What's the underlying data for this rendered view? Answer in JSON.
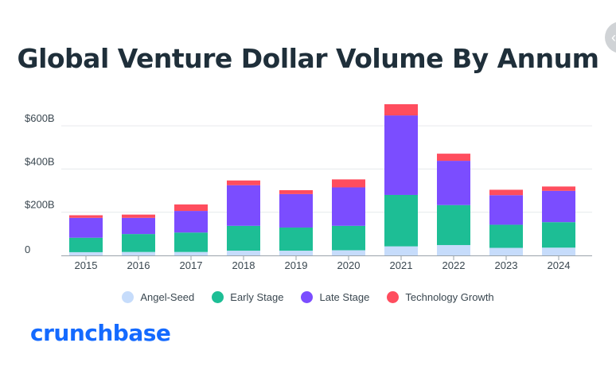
{
  "chart_data": {
    "type": "bar",
    "stacked": true,
    "title": "Global Venture Dollar Volume By Annum",
    "categories": [
      "2015",
      "2016",
      "2017",
      "2018",
      "2019",
      "2020",
      "2021",
      "2022",
      "2023",
      "2024"
    ],
    "series": [
      {
        "name": "Angel-Seed",
        "color": "#c6dcfb",
        "values": [
          15,
          16,
          16,
          22,
          22,
          24,
          42,
          48,
          35,
          36
        ]
      },
      {
        "name": "Early Stage",
        "color": "#1dbe95",
        "values": [
          67,
          83,
          90,
          115,
          107,
          113,
          238,
          185,
          107,
          118
        ]
      },
      {
        "name": "Late Stage",
        "color": "#7b4dff",
        "values": [
          92,
          75,
          100,
          188,
          155,
          178,
          368,
          205,
          137,
          145
        ]
      },
      {
        "name": "Technology Growth",
        "color": "#ff4d5e",
        "values": [
          12,
          15,
          30,
          22,
          18,
          37,
          52,
          33,
          25,
          20
        ]
      }
    ],
    "yticks": [
      {
        "value": 0,
        "label": "0"
      },
      {
        "value": 200,
        "label": "$200B"
      },
      {
        "value": 400,
        "label": "$400B"
      },
      {
        "value": 600,
        "label": "$600B"
      }
    ],
    "ylim": [
      0,
      700
    ],
    "grid": true,
    "legend_position": "bottom-center"
  },
  "brand": {
    "name": "crunchbase",
    "color": "#146aff"
  },
  "corner_button": {
    "icon": "chevron-left-icon",
    "glyph": "‹"
  }
}
